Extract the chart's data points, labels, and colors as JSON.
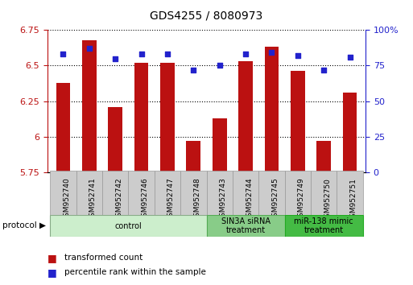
{
  "title": "GDS4255 / 8080973",
  "samples": [
    "GSM952740",
    "GSM952741",
    "GSM952742",
    "GSM952746",
    "GSM952747",
    "GSM952748",
    "GSM952743",
    "GSM952744",
    "GSM952745",
    "GSM952749",
    "GSM952750",
    "GSM952751"
  ],
  "transformed_count": [
    6.38,
    6.68,
    6.21,
    6.52,
    6.52,
    5.97,
    6.13,
    6.53,
    6.63,
    6.46,
    5.97,
    6.31
  ],
  "percentile_rank": [
    83,
    87,
    80,
    83,
    83,
    72,
    75,
    83,
    84,
    82,
    72,
    81
  ],
  "ylim_left": [
    5.75,
    6.75
  ],
  "ylim_right": [
    0,
    100
  ],
  "yticks_left": [
    5.75,
    6.0,
    6.25,
    6.5,
    6.75
  ],
  "yticks_right": [
    0,
    25,
    50,
    75,
    100
  ],
  "bar_color": "#bb1111",
  "dot_color": "#2222cc",
  "bar_width": 0.55,
  "groups": [
    {
      "label": "control",
      "start": 0,
      "end": 5,
      "color": "#cceecc",
      "border": "#88aa88"
    },
    {
      "label": "SIN3A siRNA\ntreatment",
      "start": 6,
      "end": 8,
      "color": "#88cc88",
      "border": "#55aa55"
    },
    {
      "label": "miR-138 mimic\ntreatment",
      "start": 9,
      "end": 11,
      "color": "#44bb44",
      "border": "#22aa22"
    }
  ],
  "protocol_label": "protocol",
  "legend_tc": "transformed count",
  "legend_pr": "percentile rank within the sample",
  "background_color": "#ffffff"
}
